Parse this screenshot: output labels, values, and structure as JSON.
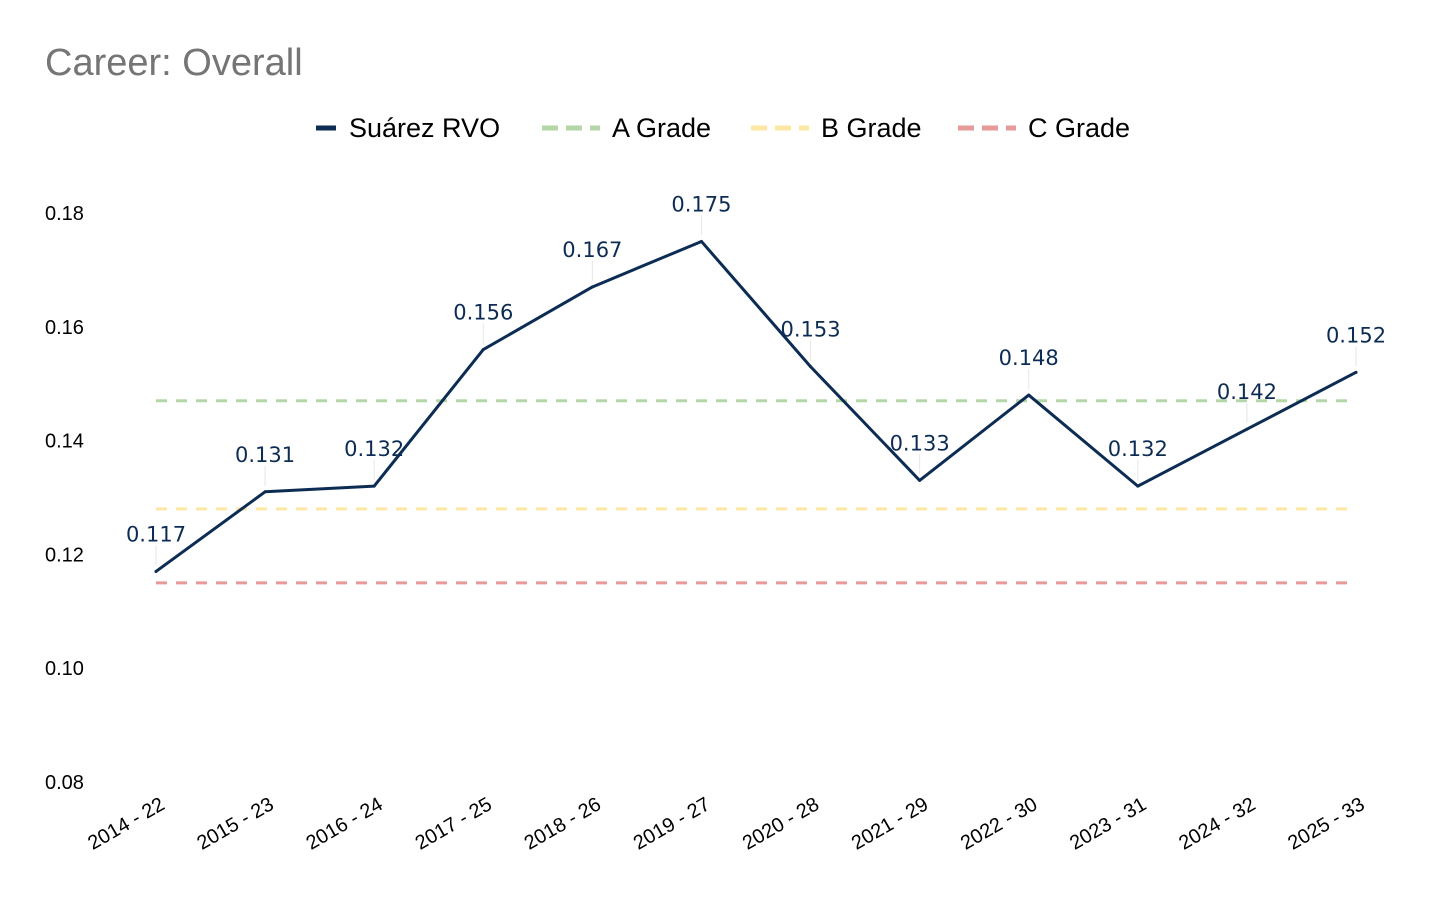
{
  "chart_data": {
    "type": "line",
    "title": "Career: Overall",
    "xlabel": "",
    "ylabel": "",
    "ylim": [
      0.08,
      0.185
    ],
    "yticks": [
      "0.08",
      "0.10",
      "0.12",
      "0.14",
      "0.16",
      "0.18"
    ],
    "grid": false,
    "legend_position": "top-center",
    "categories": [
      "2014 - 22",
      "2015 - 23",
      "2016 - 24",
      "2017 - 25",
      "2018 - 26",
      "2019 - 27",
      "2020 - 28",
      "2021 - 29",
      "2022 - 30",
      "2023 - 31",
      "2024 - 32",
      "2025 - 33"
    ],
    "series": [
      {
        "name": "Suárez RVO",
        "color": "#0d2c54",
        "style": "solid",
        "values": [
          0.117,
          0.131,
          0.132,
          0.156,
          0.167,
          0.175,
          0.153,
          0.133,
          0.148,
          0.132,
          0.142,
          0.152
        ],
        "labels": [
          "0.117",
          "0.131",
          "0.132",
          "0.156",
          "0.167",
          "0.175",
          "0.153",
          "0.133",
          "0.148",
          "0.132",
          "0.142",
          "0.152"
        ]
      }
    ],
    "reference_lines": [
      {
        "name": "A Grade",
        "value": 0.147,
        "color": "#b5d7a8",
        "style": "dashed"
      },
      {
        "name": "B Grade",
        "value": 0.128,
        "color": "#fce8a4",
        "style": "dashed"
      },
      {
        "name": "C Grade",
        "value": 0.115,
        "color": "#e69a99",
        "style": "dashed"
      }
    ]
  }
}
